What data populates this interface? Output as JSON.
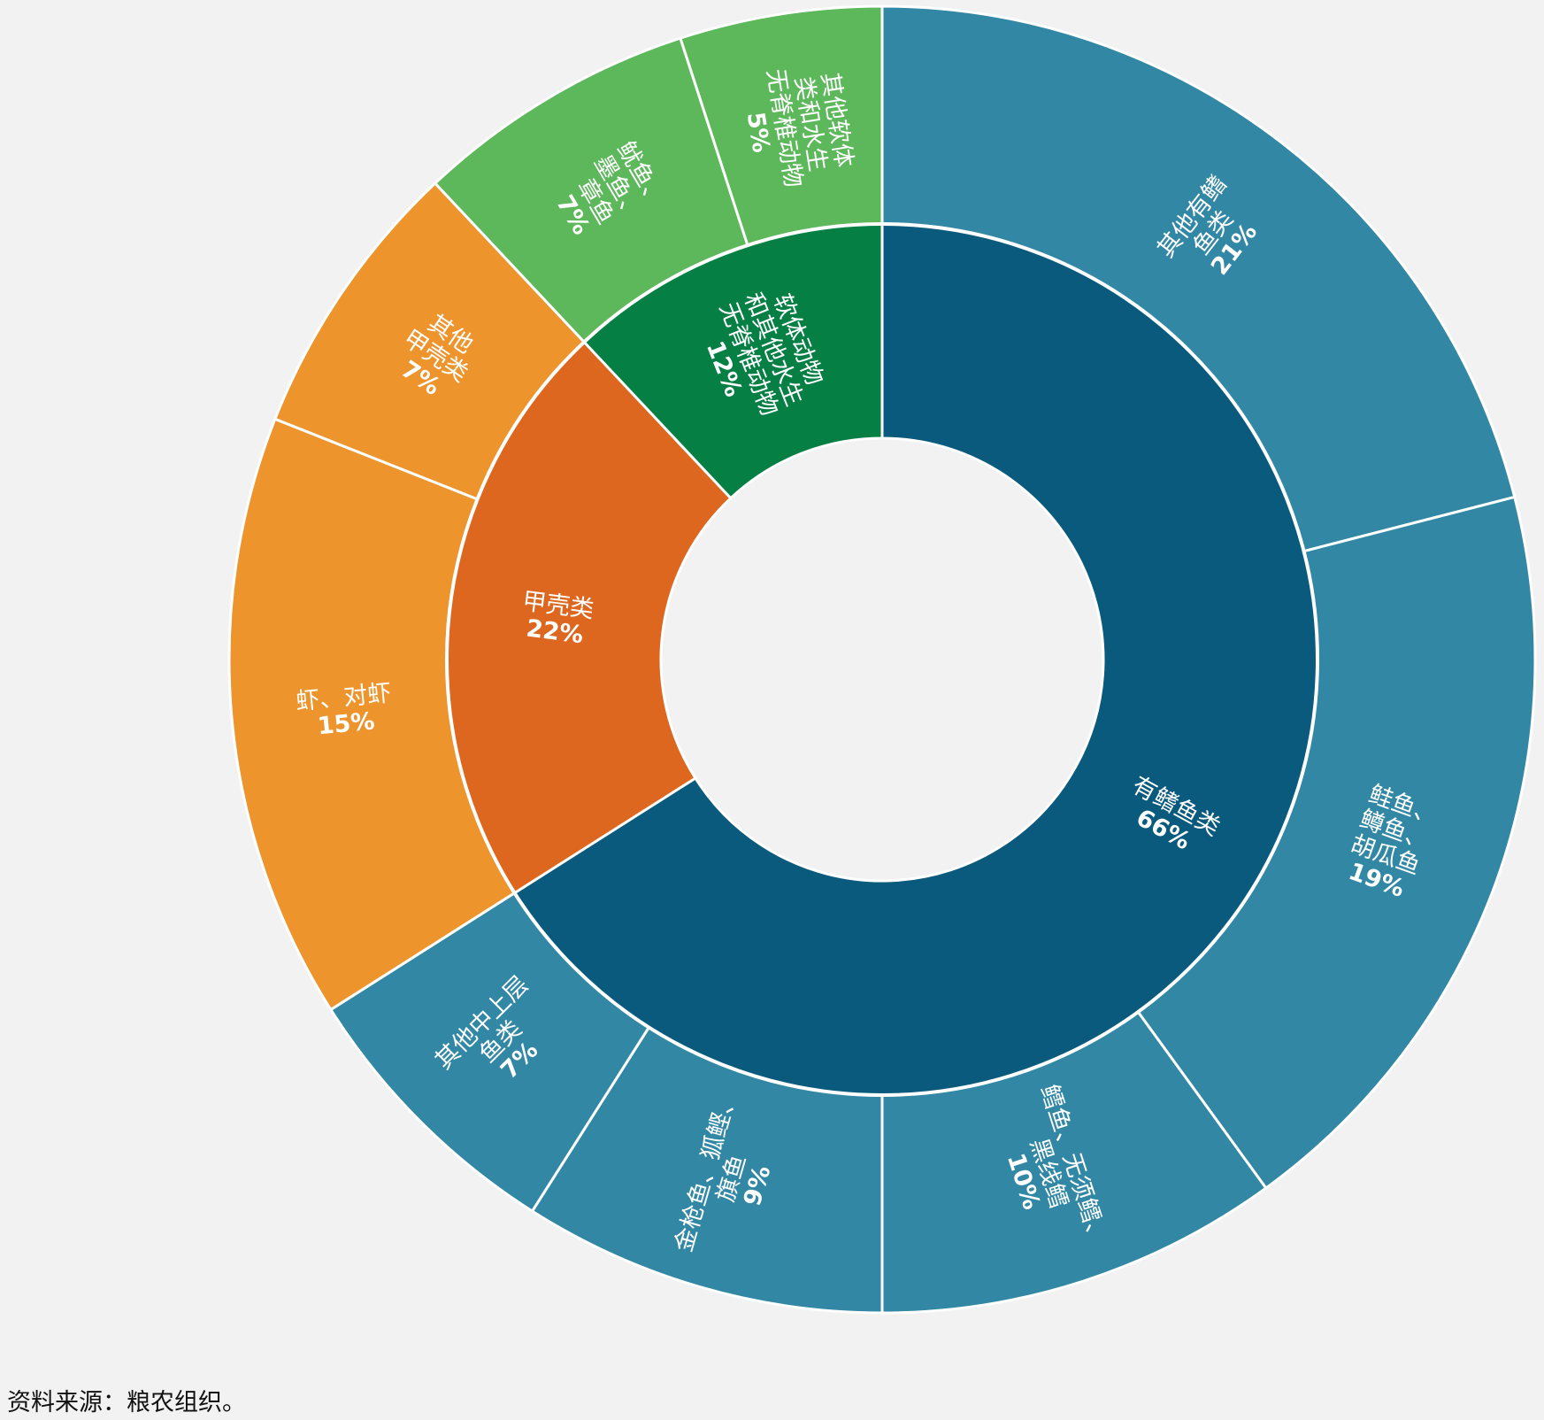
{
  "chart_data": {
    "type": "sunburst",
    "title": "",
    "inner_ring": [
      {
        "name": "有鳍鱼类",
        "percent": 66,
        "color": "#0a5a7d",
        "label_lines": [
          "有鳍鱼类"
        ],
        "pct_label": "66%"
      },
      {
        "name": "甲壳类",
        "percent": 22,
        "color": "#de6720",
        "label_lines": [
          "甲壳类"
        ],
        "pct_label": "22%"
      },
      {
        "name": "软体动物和其他水生无脊椎动物",
        "percent": 12,
        "color": "#067f44",
        "label_lines": [
          "软体动物",
          "和其他水生",
          "无脊椎动物"
        ],
        "pct_label": "12%"
      }
    ],
    "outer_ring": [
      {
        "name": "其他有鳍鱼类",
        "percent": 21,
        "parent": "有鳍鱼类",
        "color": "#3288a4",
        "label_lines": [
          "其他有鳍",
          "鱼类"
        ],
        "pct_label": "21%"
      },
      {
        "name": "鲑鱼、鳟鱼、胡瓜鱼",
        "percent": 19,
        "parent": "有鳍鱼类",
        "color": "#3288a4",
        "label_lines": [
          "鲑鱼、",
          "鳟鱼、",
          "胡瓜鱼"
        ],
        "pct_label": "19%"
      },
      {
        "name": "鳕鱼、无须鳕、黑线鳕",
        "percent": 10,
        "parent": "有鳍鱼类",
        "color": "#3288a4",
        "label_lines": [
          "鳕鱼、无须鳕、",
          "黑线鳕"
        ],
        "pct_label": "10%"
      },
      {
        "name": "金枪鱼、狐鲣、旗鱼",
        "percent": 9,
        "parent": "有鳍鱼类",
        "color": "#3288a4",
        "label_lines": [
          "金枪鱼、狐鲣、",
          "旗鱼"
        ],
        "pct_label": "9%"
      },
      {
        "name": "其他中上层鱼类",
        "percent": 7,
        "parent": "有鳍鱼类",
        "color": "#3288a4",
        "label_lines": [
          "其他中上层",
          "鱼类"
        ],
        "pct_label": "7%"
      },
      {
        "name": "虾、对虾",
        "percent": 15,
        "parent": "甲壳类",
        "color": "#ed942d",
        "label_lines": [
          "虾、对虾"
        ],
        "pct_label": "15%"
      },
      {
        "name": "其他甲壳类",
        "percent": 7,
        "parent": "甲壳类",
        "color": "#ed942d",
        "label_lines": [
          "其他",
          "甲壳类"
        ],
        "pct_label": "7%"
      },
      {
        "name": "鱿鱼、墨鱼、章鱼",
        "percent": 7,
        "parent": "软体动物和其他水生无脊椎动物",
        "color": "#5db75b",
        "label_lines": [
          "鱿鱼、",
          "墨鱼、",
          "章鱼"
        ],
        "pct_label": "7%"
      },
      {
        "name": "其他软体类和水生无脊椎动物",
        "percent": 5,
        "parent": "软体动物和其他水生无脊椎动物",
        "color": "#5db75b",
        "label_lines": [
          "其他软体",
          "类和水生",
          "无脊椎动物"
        ],
        "pct_label": "5%"
      }
    ]
  },
  "source_note": "资料来源：粮农组织。"
}
